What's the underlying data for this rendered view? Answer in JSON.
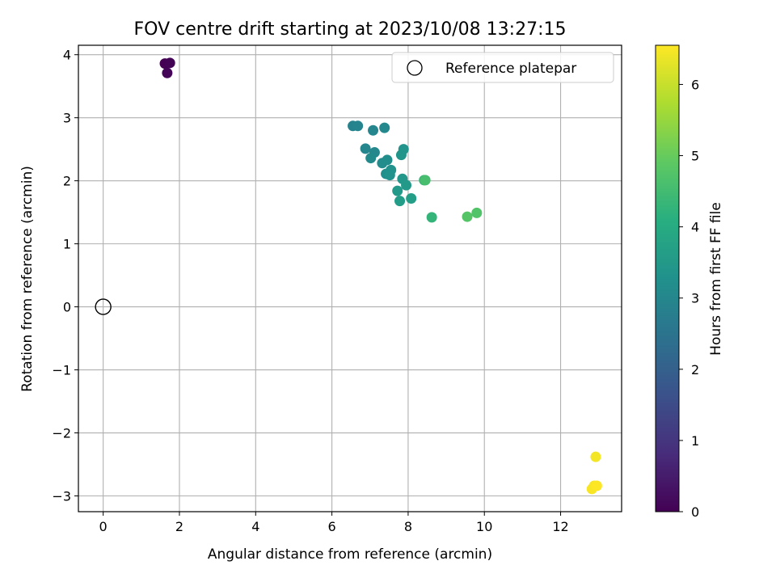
{
  "chart_data": {
    "type": "scatter",
    "title": "FOV centre drift starting at 2023/10/08 13:27:15",
    "xlabel": "Angular distance from reference (arcmin)",
    "ylabel": "Rotation from reference (arcmin)",
    "xlim": [
      -0.65,
      13.6
    ],
    "ylim": [
      -3.25,
      4.15
    ],
    "xticks": [
      0,
      2,
      4,
      6,
      8,
      10,
      12
    ],
    "yticks": [
      -3,
      -2,
      -1,
      0,
      1,
      2,
      3,
      4
    ],
    "grid": true,
    "legend": {
      "position": "top-right",
      "entries": [
        {
          "label": "Reference platepar",
          "marker": "open-circle"
        }
      ]
    },
    "reference_point": {
      "x": 0,
      "y": 0
    },
    "colorbar": {
      "label": "Hours from first FF file",
      "colormap": "viridis",
      "range": [
        0,
        6.55
      ],
      "ticks": [
        0,
        1,
        2,
        3,
        4,
        5,
        6
      ]
    },
    "points": [
      {
        "x": 1.62,
        "y": 3.86,
        "c": 0.0
      },
      {
        "x": 1.75,
        "y": 3.87,
        "c": 0.05
      },
      {
        "x": 1.68,
        "y": 3.71,
        "c": 0.08
      },
      {
        "x": 6.55,
        "y": 2.87,
        "c": 2.9
      },
      {
        "x": 6.68,
        "y": 2.87,
        "c": 2.95
      },
      {
        "x": 7.08,
        "y": 2.8,
        "c": 3.0
      },
      {
        "x": 7.38,
        "y": 2.84,
        "c": 3.05
      },
      {
        "x": 6.88,
        "y": 2.51,
        "c": 3.0
      },
      {
        "x": 7.12,
        "y": 2.45,
        "c": 3.05
      },
      {
        "x": 7.02,
        "y": 2.36,
        "c": 3.1
      },
      {
        "x": 7.32,
        "y": 2.28,
        "c": 3.15
      },
      {
        "x": 7.45,
        "y": 2.33,
        "c": 3.2
      },
      {
        "x": 7.42,
        "y": 2.11,
        "c": 3.25
      },
      {
        "x": 7.55,
        "y": 2.17,
        "c": 3.3
      },
      {
        "x": 7.52,
        "y": 2.09,
        "c": 3.3
      },
      {
        "x": 7.88,
        "y": 2.5,
        "c": 3.35
      },
      {
        "x": 7.82,
        "y": 2.41,
        "c": 3.4
      },
      {
        "x": 7.85,
        "y": 2.03,
        "c": 3.45
      },
      {
        "x": 7.95,
        "y": 1.93,
        "c": 3.5
      },
      {
        "x": 7.72,
        "y": 1.84,
        "c": 3.5
      },
      {
        "x": 7.78,
        "y": 1.68,
        "c": 3.6
      },
      {
        "x": 8.08,
        "y": 1.72,
        "c": 3.65
      },
      {
        "x": 8.42,
        "y": 2.01,
        "c": 4.3
      },
      {
        "x": 8.45,
        "y": 2.01,
        "c": 4.6
      },
      {
        "x": 8.62,
        "y": 1.42,
        "c": 4.3
      },
      {
        "x": 9.55,
        "y": 1.43,
        "c": 4.8
      },
      {
        "x": 9.8,
        "y": 1.49,
        "c": 4.75
      },
      {
        "x": 12.92,
        "y": -2.38,
        "c": 6.45
      },
      {
        "x": 12.88,
        "y": -2.84,
        "c": 6.5
      },
      {
        "x": 12.82,
        "y": -2.89,
        "c": 6.5
      },
      {
        "x": 12.95,
        "y": -2.84,
        "c": 6.55
      }
    ]
  }
}
